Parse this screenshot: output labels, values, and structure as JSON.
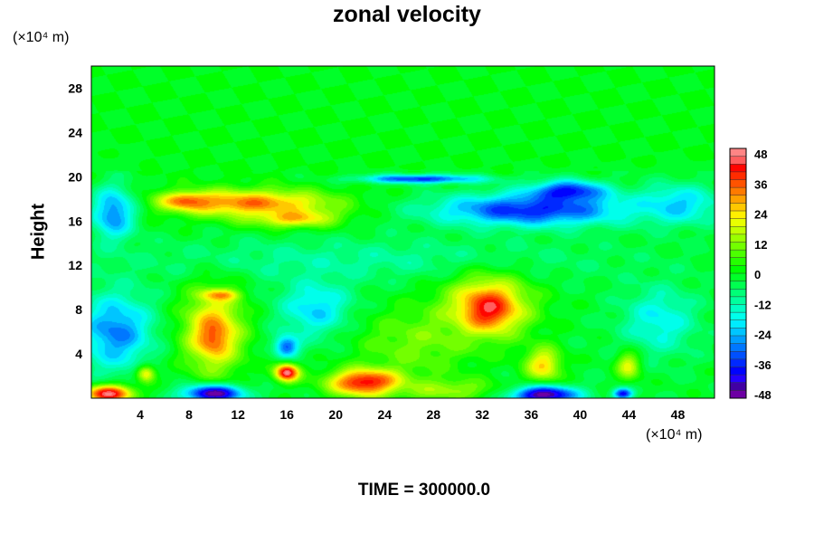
{
  "chart_data": {
    "type": "heatmap",
    "title": "zonal velocity",
    "ylabel": "Height",
    "xlabel": "",
    "x_unit": "(×10⁴ m)",
    "y_unit": "(×10⁴ m)",
    "time_label": "TIME = 300000.0",
    "xlim": [
      0,
      51
    ],
    "ylim": [
      0,
      30
    ],
    "x_ticks": [
      4,
      8,
      12,
      16,
      20,
      24,
      28,
      32,
      36,
      40,
      44,
      48
    ],
    "y_ticks": [
      4,
      8,
      12,
      16,
      20,
      24,
      28
    ],
    "colorbar": {
      "min": -48,
      "max": 48,
      "ticks": [
        48,
        36,
        24,
        12,
        0,
        -12,
        -24,
        -36,
        -48
      ]
    },
    "features": [
      {
        "x": 0,
        "y": 22,
        "rx": 60,
        "ry": 8,
        "value": 0
      },
      {
        "x": 13,
        "y": 17.6,
        "rx": 6.5,
        "ry": 1.2,
        "value": 32
      },
      {
        "x": 16.5,
        "y": 16.3,
        "rx": 3.5,
        "ry": 0.9,
        "value": 28
      },
      {
        "x": 8,
        "y": 17.8,
        "rx": 2,
        "ry": 0.7,
        "value": 36
      },
      {
        "x": 36,
        "y": 17.0,
        "rx": 8,
        "ry": 1.5,
        "value": -36
      },
      {
        "x": 39,
        "y": 18.6,
        "rx": 3,
        "ry": 1,
        "value": -40
      },
      {
        "x": 27,
        "y": 19.8,
        "rx": 5,
        "ry": 0.4,
        "value": -34
      },
      {
        "x": 1.8,
        "y": 16.7,
        "rx": 1.8,
        "ry": 2.5,
        "value": -28
      },
      {
        "x": 48,
        "y": 17.5,
        "rx": 3.5,
        "ry": 1.8,
        "value": -22
      },
      {
        "x": 22,
        "y": 12.5,
        "rx": 20,
        "ry": 2,
        "value": -10
      },
      {
        "x": 2,
        "y": 6,
        "rx": 3,
        "ry": 3.5,
        "value": -28
      },
      {
        "x": 10,
        "y": 6,
        "rx": 2.5,
        "ry": 3.8,
        "value": 28
      },
      {
        "x": 10,
        "y": 5.5,
        "rx": 1,
        "ry": 1.2,
        "value": 36
      },
      {
        "x": 10.5,
        "y": 9.3,
        "rx": 1.5,
        "ry": 0.5,
        "value": 30
      },
      {
        "x": 16,
        "y": 4.7,
        "rx": 1,
        "ry": 1,
        "value": -34
      },
      {
        "x": 18.5,
        "y": 8,
        "rx": 3,
        "ry": 2.6,
        "value": -22
      },
      {
        "x": 26.5,
        "y": 5,
        "rx": 5,
        "ry": 3.3,
        "value": 10
      },
      {
        "x": 32.5,
        "y": 8.3,
        "rx": 3.5,
        "ry": 2.8,
        "value": 30
      },
      {
        "x": 32.5,
        "y": 8.0,
        "rx": 1.6,
        "ry": 1.4,
        "value": 42
      },
      {
        "x": 37,
        "y": 3,
        "rx": 1.5,
        "ry": 1.6,
        "value": 24
      },
      {
        "x": 44,
        "y": 3,
        "rx": 1,
        "ry": 1.3,
        "value": 22
      },
      {
        "x": 46.5,
        "y": 7,
        "rx": 3,
        "ry": 3,
        "value": -18
      },
      {
        "x": 22.5,
        "y": 1.4,
        "rx": 3,
        "ry": 1.2,
        "value": 44
      },
      {
        "x": 16,
        "y": 2.3,
        "rx": 1,
        "ry": 0.8,
        "value": 46
      },
      {
        "x": 10,
        "y": 0.4,
        "rx": 2.5,
        "ry": 0.8,
        "value": -46
      },
      {
        "x": 37,
        "y": 0.3,
        "rx": 2.8,
        "ry": 0.8,
        "value": -48
      },
      {
        "x": 1.5,
        "y": 0.4,
        "rx": 2,
        "ry": 0.8,
        "value": 44
      },
      {
        "x": 43.5,
        "y": 0.4,
        "rx": 0.8,
        "ry": 0.5,
        "value": -38
      },
      {
        "x": 29,
        "y": 0.8,
        "rx": 4,
        "ry": 1,
        "value": 14
      },
      {
        "x": 4.5,
        "y": 2.2,
        "rx": 0.8,
        "ry": 0.8,
        "value": 22
      }
    ]
  }
}
